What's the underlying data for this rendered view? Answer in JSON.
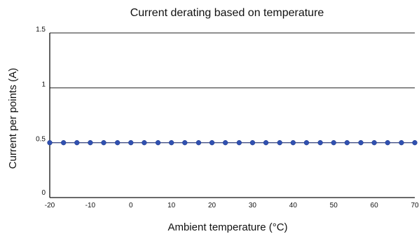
{
  "chart_data": {
    "type": "line",
    "title": "Current derating based on temperature",
    "xlabel": "Ambient temperature (°C)",
    "ylabel": "Current per points (A)",
    "xlim": [
      -20,
      70
    ],
    "ylim": [
      0,
      1.5
    ],
    "x_ticks": [
      "-20",
      "-10",
      "0",
      "10",
      "20",
      "30",
      "40",
      "50",
      "60",
      "70"
    ],
    "y_ticks": [
      "0",
      "0.5",
      "1",
      "1.5"
    ],
    "grid": "horizontal",
    "series": [
      {
        "color": "#3050b0",
        "x": [
          -20,
          -16.6,
          -13.3,
          -10,
          -6.7,
          -3.3,
          0,
          3.3,
          6.7,
          10,
          13.3,
          16.7,
          20,
          23.3,
          26.7,
          30,
          33.3,
          36.7,
          40,
          43.3,
          46.7,
          50,
          53.3,
          56.7,
          60,
          63.3,
          66.7,
          70
        ],
        "y": [
          0.5,
          0.5,
          0.5,
          0.5,
          0.5,
          0.5,
          0.5,
          0.5,
          0.5,
          0.5,
          0.5,
          0.5,
          0.5,
          0.5,
          0.5,
          0.5,
          0.5,
          0.5,
          0.5,
          0.5,
          0.5,
          0.5,
          0.5,
          0.5,
          0.5,
          0.5,
          0.5,
          0.5
        ]
      }
    ]
  }
}
